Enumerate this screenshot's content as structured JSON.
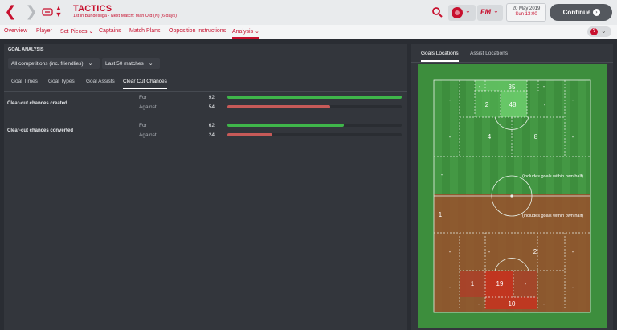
{
  "header": {
    "title": "TACTICS",
    "subtitle": "1st in Bundesliga - Next Match: Man Utd (N) (6 days)",
    "date_line1": "20 May 2019",
    "date_line2": "Sun 13:00",
    "continue_label": "Continue",
    "fm_logo": "FM"
  },
  "tabs": [
    {
      "label": "Overview"
    },
    {
      "label": "Player"
    },
    {
      "label": "Set Pieces ⌄"
    },
    {
      "label": "Captains"
    },
    {
      "label": "Match Plans"
    },
    {
      "label": "Opposition Instructions"
    },
    {
      "label": "Analysis ⌄"
    }
  ],
  "left": {
    "title": "GOAL ANALYSIS",
    "competition": "All competitions (inc. friendlies)",
    "range": "Last 50 matches",
    "subtabs": [
      "Goal Times",
      "Goal Types",
      "Goal Assists",
      "Clear Cut Chances"
    ],
    "metrics": [
      {
        "label": "Clear-cut chances created",
        "rows": [
          {
            "label": "For",
            "value": "92",
            "fraction": 1.0
          },
          {
            "label": "Against",
            "value": "54",
            "fraction": 0.59
          }
        ]
      },
      {
        "label": "Clear-cut chances converted",
        "rows": [
          {
            "label": "For",
            "value": "62",
            "fraction": 0.67
          },
          {
            "label": "Against",
            "value": "24",
            "fraction": 0.26
          }
        ]
      }
    ]
  },
  "right": {
    "tabs": [
      "Goals Locations",
      "Assist Locations"
    ],
    "zones": {
      "top_box_l": "-",
      "top_six_l": "-",
      "top_six": "35",
      "top_six_r": "-",
      "top_box_r": "-",
      "top_side_l": "-",
      "top_mid_l": "2",
      "top_mid_c": "48",
      "top_mid_r": "-",
      "top_side_r": "-",
      "top2_side_l": "-",
      "top2_c1": "4",
      "top2_c2": "8",
      "top2_side_r": "-",
      "half_top": "-",
      "half_top_note": "(includes goals within own half)",
      "half_bottom": "1",
      "half_bottom_note": "(includes goals within own half)",
      "bot2_side_l": "-",
      "bot2_c1": "-",
      "bot2_c2": "2",
      "bot2_side_r": "-",
      "bot_side_l": "-",
      "bot_mid_l": "1",
      "bot_mid_c": "19",
      "bot_mid_r": "-",
      "bot_side_r": "-",
      "bot_box_l": "-",
      "bot_six": "10",
      "bot_box_r": "-"
    }
  },
  "colors": {
    "accent": "#c8102e",
    "bar_for": "#3fb64a",
    "bar_against": "#c75a58",
    "pitch_green": "#3d8e3d",
    "pitch_red": "#9a4f2c"
  }
}
